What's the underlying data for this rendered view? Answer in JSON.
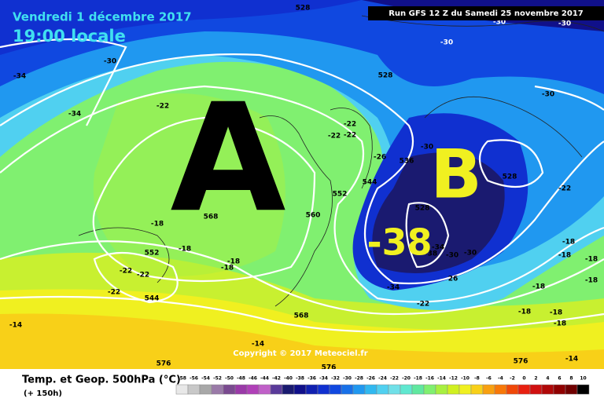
{
  "header": {
    "date": "Vendredi 1 décembre 2017",
    "time": "19:00 locale",
    "run": "Run GFS 12 Z du Samedi 25 novembre 2017"
  },
  "map": {
    "high": "A",
    "low": "B",
    "low_value": "-38",
    "copyright": "Copyright © 2017 Meteociel.fr",
    "labels": [
      "528",
      "-30",
      "-34",
      "-34",
      "-22",
      "-22",
      "-22",
      "-22",
      "-30",
      "528",
      "-30",
      "-30",
      "-26",
      "536",
      "544",
      "552",
      "528",
      "-22",
      "560",
      "568",
      "-18",
      "552",
      "-18",
      "-18",
      "-18",
      "-22",
      "-22",
      "-22",
      "544",
      "528",
      "-34",
      "-38",
      "-30",
      "-30",
      "26",
      "-34",
      "-22",
      "568",
      "-18",
      "-18",
      "-18",
      "-18",
      "-18",
      "-18",
      "-18",
      "-18",
      "-14",
      "-14",
      "576",
      "576",
      "576",
      "-14",
      "-30",
      "-30"
    ]
  },
  "legend": {
    "title": "Temp. et Geop. 500hPa (°C)",
    "lead": "(+ 150h)",
    "ticks": [
      -58,
      -56,
      -54,
      -52,
      -50,
      -48,
      -46,
      -44,
      -42,
      -40,
      -38,
      -36,
      -34,
      -32,
      -30,
      -28,
      -26,
      -24,
      -22,
      -20,
      -18,
      -16,
      -14,
      -12,
      -10,
      -8,
      -6,
      -4,
      -2,
      0,
      2,
      4,
      6,
      8,
      10
    ],
    "colors": [
      "#e8e8e8",
      "#c8c8c8",
      "#a8a8a8",
      "#9a7aa8",
      "#7a4a90",
      "#9a3aa8",
      "#b040b8",
      "#c060c8",
      "#5a3a9a",
      "#1a1a70",
      "#10108a",
      "#1020b0",
      "#1030d0",
      "#1048e0",
      "#1870e8",
      "#2098f0",
      "#30b8f0",
      "#50d0f0",
      "#70e0e8",
      "#60e8d0",
      "#60e8a0",
      "#80f070",
      "#a8f040",
      "#d0f020",
      "#f0f020",
      "#f8d018",
      "#f8a010",
      "#f87808",
      "#f04808",
      "#e82010",
      "#d01010",
      "#b00808",
      "#900000",
      "#700000",
      "#000000"
    ]
  }
}
